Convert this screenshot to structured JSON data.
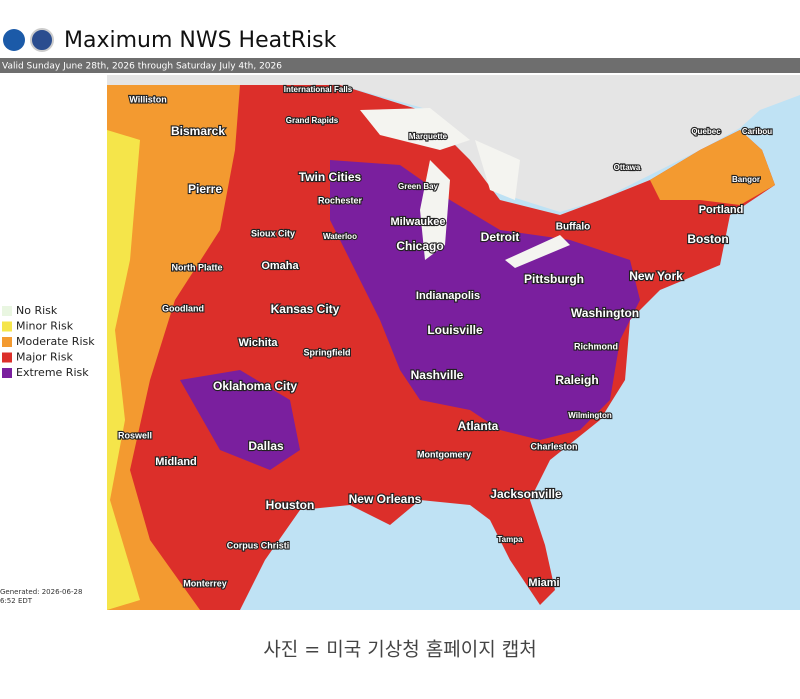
{
  "header": {
    "title": "Maximum NWS HeatRisk",
    "valid": "Valid Sunday June 28th, 2026 through Saturday July 4th, 2026"
  },
  "legend": [
    {
      "label": "No Risk",
      "color": "#e9f6e1"
    },
    {
      "label": "Minor Risk",
      "color": "#f5e54a"
    },
    {
      "label": "Moderate Risk",
      "color": "#f39a30"
    },
    {
      "label": "Major Risk",
      "color": "#dc2f2a"
    },
    {
      "label": "Extreme Risk",
      "color": "#7a1f9e"
    }
  ],
  "cities": [
    "Williston",
    "Bismarck",
    "Pierre",
    "Sioux City",
    "Omaha",
    "North Platte",
    "Goodland",
    "Kansas City",
    "Wichita",
    "Springfield",
    "Oklahoma City",
    "Roswell",
    "Dallas",
    "Midland",
    "Houston",
    "Corpus Christi",
    "Monterrey",
    "International Falls",
    "Grand Rapids",
    "Marquette",
    "Twin Cities",
    "Rochester",
    "Green Bay",
    "Waterloo",
    "Milwaukee",
    "Chicago",
    "Detroit",
    "Buffalo",
    "Ottawa",
    "Quebec",
    "Caribou",
    "Bangor",
    "Portland",
    "Boston",
    "New York",
    "Pittsburgh",
    "Indianapolis",
    "Washington",
    "Louisville",
    "Richmond",
    "Raleigh",
    "Nashville",
    "Wilmington",
    "Atlanta",
    "Charleston",
    "Montgomery",
    "New Orleans",
    "Jacksonville",
    "Tampa",
    "Miami"
  ],
  "generated": [
    "Generated: 2026-06-28",
    "6:52 EDT"
  ],
  "caption": "사진 = 미국 기상청 홈페이지 캡처"
}
